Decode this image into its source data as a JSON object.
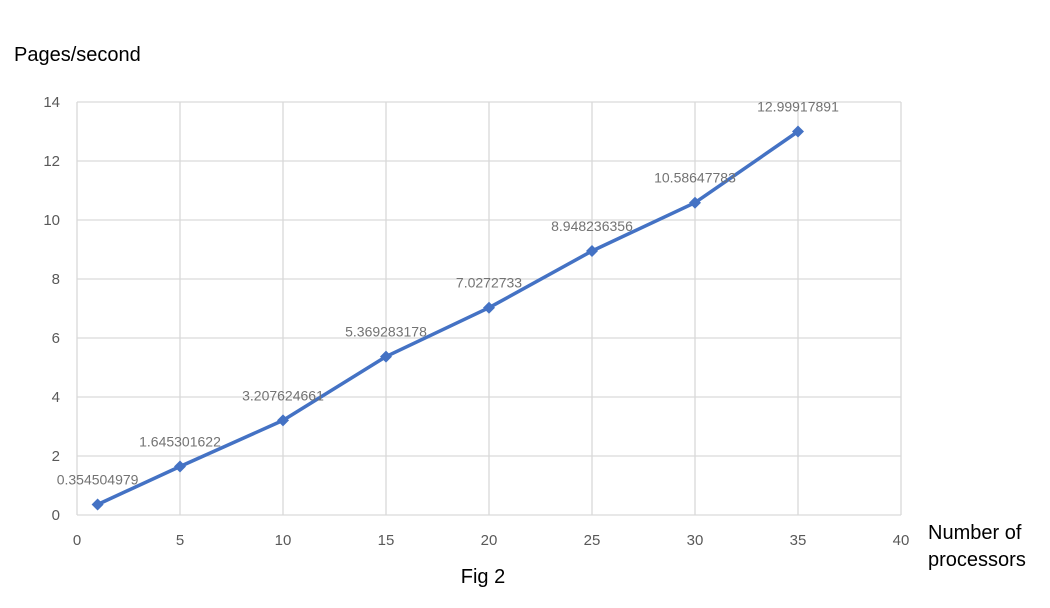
{
  "chart_data": {
    "type": "scatter",
    "title": "",
    "caption": "Fig 2",
    "ylabel": "Pages/second",
    "xlabel_lines": [
      "Number of",
      "processors"
    ],
    "xlim": [
      0,
      40
    ],
    "ylim": [
      0,
      14
    ],
    "xticks": [
      "0",
      "5",
      "10",
      "15",
      "20",
      "25",
      "30",
      "35",
      "40"
    ],
    "yticks": [
      "0",
      "2",
      "4",
      "6",
      "8",
      "10",
      "12",
      "14"
    ],
    "grid": true,
    "legend": "none",
    "line_color": "#4472c4",
    "series": [
      {
        "x": [
          1,
          5,
          10,
          15,
          20,
          25,
          30,
          35
        ],
        "y": [
          0.354504979,
          1.645301622,
          3.207624661,
          5.369283178,
          7.0272733,
          8.948236356,
          10.58647783,
          12.99917891
        ],
        "data_labels": [
          "0.354504979",
          "1.645301622",
          "3.207624661",
          "5.369283178",
          "7.0272733",
          "8.948236356",
          "10.58647783",
          "12.99917891"
        ]
      }
    ]
  }
}
